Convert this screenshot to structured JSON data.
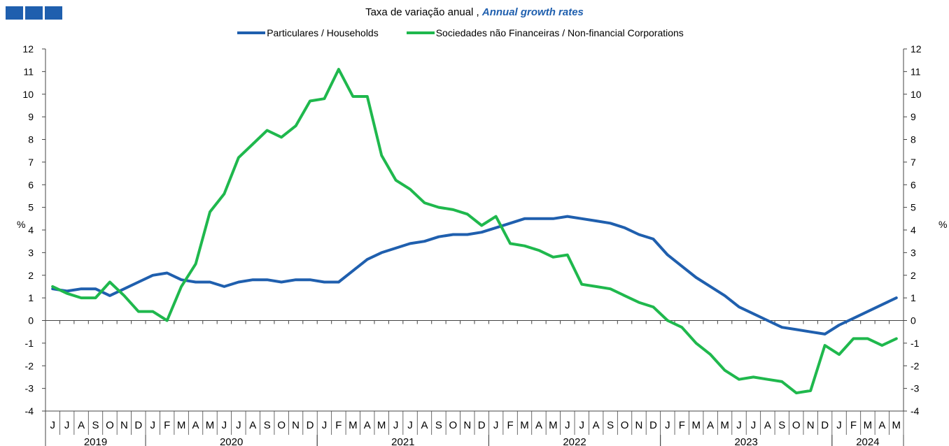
{
  "header": {
    "subtitle_pt": "Taxa de variação anual ,",
    "subtitle_en": "Annual growth rates"
  },
  "colors": {
    "households": "#1f5fae",
    "corporations": "#1fb84d",
    "accent": "#1f5fae"
  },
  "chart_data": {
    "type": "line",
    "title": "",
    "subtitle": "Taxa de variação anual , Annual growth rates",
    "ylabel_left": "%",
    "ylabel_right": "%",
    "ylim": [
      -4,
      12
    ],
    "yticks": [
      -4,
      -3,
      -2,
      -1,
      0,
      1,
      2,
      3,
      4,
      5,
      6,
      7,
      8,
      9,
      10,
      11,
      12
    ],
    "grid": false,
    "legend_position": "top",
    "x": [
      "2019-06",
      "2019-07",
      "2019-08",
      "2019-09",
      "2019-10",
      "2019-11",
      "2019-12",
      "2020-01",
      "2020-02",
      "2020-03",
      "2020-04",
      "2020-05",
      "2020-06",
      "2020-07",
      "2020-08",
      "2020-09",
      "2020-10",
      "2020-11",
      "2020-12",
      "2021-01",
      "2021-02",
      "2021-03",
      "2021-04",
      "2021-05",
      "2021-06",
      "2021-07",
      "2021-08",
      "2021-09",
      "2021-10",
      "2021-11",
      "2021-12",
      "2022-01",
      "2022-02",
      "2022-03",
      "2022-04",
      "2022-05",
      "2022-06",
      "2022-07",
      "2022-08",
      "2022-09",
      "2022-10",
      "2022-11",
      "2022-12",
      "2023-01",
      "2023-02",
      "2023-03",
      "2023-04",
      "2023-05",
      "2023-06",
      "2023-07",
      "2023-08",
      "2023-09",
      "2023-10",
      "2023-11",
      "2023-12",
      "2024-01",
      "2024-02",
      "2024-03",
      "2024-04",
      "2024-05"
    ],
    "month_labels": [
      "J",
      "J",
      "A",
      "S",
      "O",
      "N",
      "D",
      "J",
      "F",
      "M",
      "A",
      "M",
      "J",
      "J",
      "A",
      "S",
      "O",
      "N",
      "D",
      "J",
      "F",
      "M",
      "A",
      "M",
      "J",
      "J",
      "A",
      "S",
      "O",
      "N",
      "D",
      "J",
      "F",
      "M",
      "A",
      "M",
      "J",
      "J",
      "A",
      "S",
      "O",
      "N",
      "D",
      "J",
      "F",
      "M",
      "A",
      "M",
      "J",
      "J",
      "A",
      "S",
      "O",
      "N",
      "D",
      "J",
      "F",
      "M",
      "A",
      "M"
    ],
    "years": [
      {
        "label": "2019",
        "start": 0,
        "end": 6
      },
      {
        "label": "2020",
        "start": 7,
        "end": 18
      },
      {
        "label": "2021",
        "start": 19,
        "end": 30
      },
      {
        "label": "2022",
        "start": 31,
        "end": 42
      },
      {
        "label": "2023",
        "start": 43,
        "end": 54
      },
      {
        "label": "2024",
        "start": 55,
        "end": 59
      }
    ],
    "series": [
      {
        "name": "Particulares / Households",
        "color": "#1f5fae",
        "values": [
          1.4,
          1.3,
          1.4,
          1.4,
          1.1,
          1.4,
          1.7,
          2.0,
          2.1,
          1.8,
          1.7,
          1.7,
          1.5,
          1.7,
          1.8,
          1.8,
          1.7,
          1.8,
          1.8,
          1.7,
          1.7,
          2.2,
          2.7,
          3.0,
          3.2,
          3.4,
          3.5,
          3.7,
          3.8,
          3.8,
          3.9,
          4.1,
          4.3,
          4.5,
          4.5,
          4.5,
          4.6,
          4.5,
          4.4,
          4.3,
          4.1,
          3.8,
          3.6,
          2.9,
          2.4,
          1.9,
          1.5,
          1.1,
          0.6,
          0.3,
          0.0,
          -0.3,
          -0.4,
          -0.5,
          -0.6,
          -0.2,
          0.1,
          0.4,
          0.7,
          1.0
        ]
      },
      {
        "name": "Sociedades não Financeiras / Non-financial Corporations",
        "color": "#1fb84d",
        "values": [
          1.5,
          1.2,
          1.0,
          1.0,
          1.7,
          1.1,
          0.4,
          0.4,
          0.0,
          1.5,
          2.5,
          4.8,
          5.6,
          7.2,
          7.8,
          8.4,
          8.1,
          8.6,
          9.7,
          9.8,
          11.1,
          9.9,
          9.9,
          7.3,
          6.2,
          5.8,
          5.2,
          5.0,
          4.9,
          4.7,
          4.2,
          4.6,
          3.4,
          3.3,
          3.1,
          2.8,
          2.9,
          1.6,
          1.5,
          1.4,
          1.1,
          0.8,
          0.6,
          0.0,
          -0.3,
          -1.0,
          -1.5,
          -2.2,
          -2.6,
          -2.5,
          -2.6,
          -2.7,
          -3.2,
          -3.1,
          -1.1,
          -1.5,
          -0.8,
          -0.8,
          -1.1,
          -0.8
        ]
      }
    ]
  }
}
